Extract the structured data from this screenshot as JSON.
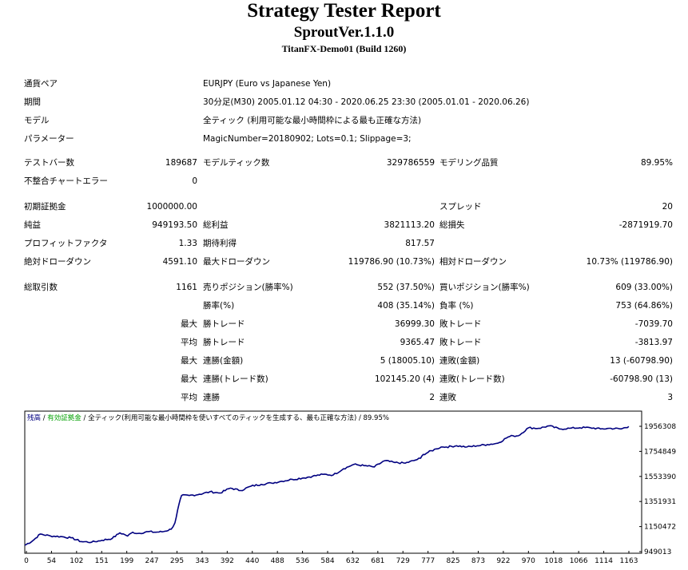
{
  "title": "Strategy Tester Report",
  "subtitle": "SproutVer.1.1.0",
  "account": "TitanFX-Demo01 (Build 1260)",
  "info": [
    {
      "label": "通貨ペア",
      "value": "EURJPY (Euro vs Japanese Yen)"
    },
    {
      "label": "期間",
      "value": "30分足(M30) 2005.01.12 04:30 - 2020.06.25 23:30 (2005.01.01 - 2020.06.26)"
    },
    {
      "label": "モデル",
      "value": "全ティック (利用可能な最小時間枠による最も正確な方法)"
    },
    {
      "label": "パラメーター",
      "value": "MagicNumber=20180902; Lots=0.1; Slippage=3;"
    }
  ],
  "stats": {
    "bars_label": "テストバー数",
    "bars": "189687",
    "ticks_label": "モデルティック数",
    "ticks": "329786559",
    "quality_label": "モデリング品質",
    "quality": "89.95%",
    "mismatch_label": "不整合チャートエラー",
    "mismatch": "0",
    "deposit_label": "初期証拠金",
    "deposit": "1000000.00",
    "spread_label": "スプレッド",
    "spread": "20",
    "net_label": "純益",
    "net": "949193.50",
    "gross_profit_label": "総利益",
    "gross_profit": "3821113.20",
    "gross_loss_label": "総損失",
    "gross_loss": "-2871919.70",
    "pf_label": "プロフィットファクタ",
    "pf": "1.33",
    "expected_label": "期待利得",
    "expected": "817.57",
    "abs_dd_label": "絶対ドローダウン",
    "abs_dd": "4591.10",
    "max_dd_label": "最大ドローダウン",
    "max_dd": "119786.90 (10.73%)",
    "rel_dd_label": "相対ドローダウン",
    "rel_dd": "10.73% (119786.90)",
    "trades_label": "総取引数",
    "trades": "1161",
    "short_label": "売りポジション(勝率%)",
    "short": "552 (37.50%)",
    "long_label": "買いポジション(勝率%)",
    "long": "609 (33.00%)",
    "win_rate_label": "勝率(%)",
    "win_rate": "408 (35.14%)",
    "loss_rate_label": "負率 (%)",
    "loss_rate": "753 (64.86%)",
    "max_word": "最大",
    "avg_word": "平均",
    "largest_win_label": "勝トレード",
    "largest_win": "36999.30",
    "largest_loss_label": "敗トレード",
    "largest_loss": "-7039.70",
    "avg_win_label": "勝トレード",
    "avg_win": "9365.47",
    "avg_loss_label": "敗トレード",
    "avg_loss": "-3813.97",
    "cons_win_money_label": "連勝(金額)",
    "cons_win_money": "5 (18005.10)",
    "cons_loss_money_label": "連敗(金額)",
    "cons_loss_money": "13 (-60798.90)",
    "cons_win_trades_label": "連勝(トレード数)",
    "cons_win_trades": "102145.20 (4)",
    "cons_loss_trades_label": "連敗(トレード数)",
    "cons_loss_trades": "-60798.90 (13)",
    "avg_cons_win_label": "連勝",
    "avg_cons_win": "2",
    "avg_cons_loss_label": "連敗",
    "avg_cons_loss": "3"
  },
  "chart_data": {
    "type": "line",
    "legend_parts": [
      {
        "text": "残高",
        "color": "#000080"
      },
      {
        "text": " / ",
        "color": "#000000"
      },
      {
        "text": "有効証拠金",
        "color": "#00a000"
      },
      {
        "text": " / 全ティック(利用可能な最小時間枠を使いすべてのティックを生成する、最も正確な方法) / 89.95%",
        "color": "#000000"
      }
    ],
    "x_ticks": [
      "0",
      "54",
      "102",
      "151",
      "199",
      "247",
      "295",
      "343",
      "392",
      "440",
      "488",
      "536",
      "584",
      "632",
      "681",
      "729",
      "777",
      "825",
      "873",
      "922",
      "970",
      "1018",
      "1066",
      "1114",
      "1163"
    ],
    "y_ticks": [
      "1956308",
      "1754849",
      "1553390",
      "1351931",
      "1150472",
      "949013"
    ],
    "ylim": [
      949013,
      1956308
    ],
    "xlim": [
      0,
      1200
    ],
    "series": [
      {
        "color": "#000080",
        "x": [
          0,
          15,
          30,
          50,
          70,
          90,
          110,
          130,
          150,
          170,
          185,
          195,
          200,
          210,
          220,
          240,
          255,
          270,
          285,
          292,
          300,
          305,
          320,
          340,
          360,
          380,
          400,
          420,
          440,
          460,
          480,
          500,
          520,
          540,
          560,
          580,
          600,
          620,
          640,
          660,
          680,
          700,
          720,
          740,
          760,
          770,
          775,
          800,
          810,
          820,
          840,
          860,
          880,
          900,
          920,
          940,
          950,
          960,
          980,
          1000,
          1020,
          1040,
          1060,
          1080,
          1100,
          1120,
          1140,
          1160,
          1175
        ],
        "y": [
          1000000,
          1035000,
          1090000,
          1075000,
          1070000,
          1060000,
          1030000,
          1025000,
          1040000,
          1055000,
          1100000,
          1085000,
          1075000,
          1105000,
          1095000,
          1110000,
          1105000,
          1110000,
          1130000,
          1180000,
          1330000,
          1400000,
          1400000,
          1410000,
          1430000,
          1420000,
          1460000,
          1440000,
          1475000,
          1490000,
          1500000,
          1515000,
          1530000,
          1540000,
          1555000,
          1570000,
          1565000,
          1615000,
          1650000,
          1640000,
          1630000,
          1680000,
          1665000,
          1660000,
          1685000,
          1700000,
          1730000,
          1775000,
          1790000,
          1790000,
          1800000,
          1790000,
          1800000,
          1810000,
          1820000,
          1870000,
          1880000,
          1880000,
          1945000,
          1940000,
          1960000,
          1935000,
          1940000,
          1945000,
          1945000,
          1935000,
          1940000,
          1935000,
          1955000
        ]
      }
    ]
  }
}
